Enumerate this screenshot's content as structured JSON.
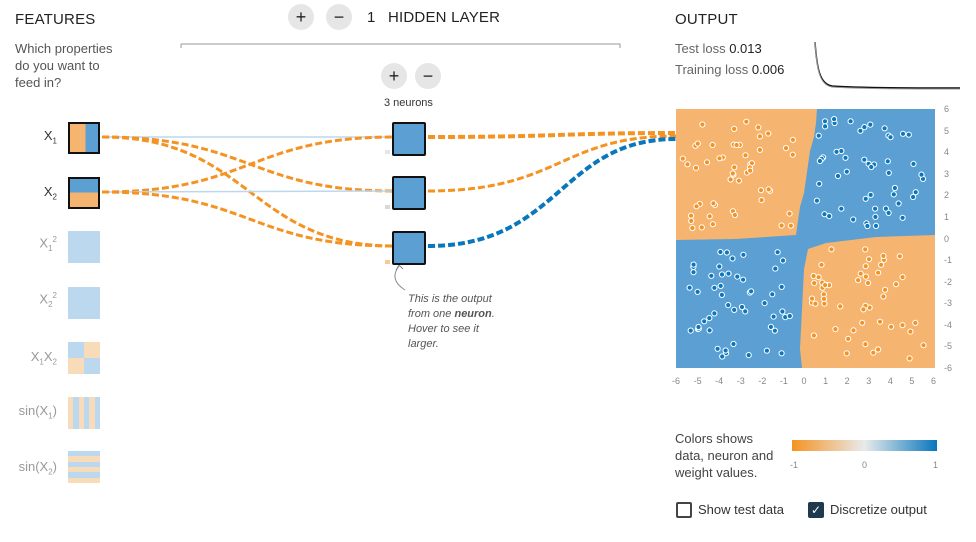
{
  "features": {
    "title": "FEATURES",
    "subtitle_lines": [
      "Which properties",
      "do you want to",
      "feed in?"
    ]
  },
  "hidden": {
    "count": "1",
    "title": "HIDDEN LAYER",
    "neurons_label": "3 neurons",
    "add_layer_label": "+",
    "remove_layer_label": "−",
    "add_neuron_label": "+",
    "remove_neuron_label": "−"
  },
  "note": {
    "line1": "This is the output",
    "line2_pre": "from one ",
    "line2_bold": "neuron",
    "line2_post": ".",
    "line3": "Hover to see it",
    "line4": "larger."
  },
  "output": {
    "title": "OUTPUT",
    "test_loss_label": "Test loss",
    "test_loss_value": "0.013",
    "train_loss_label": "Training loss",
    "train_loss_value": "0.006",
    "x_ticks": [
      "-6",
      "-5",
      "-4",
      "-3",
      "-2",
      "-1",
      "0",
      "1",
      "2",
      "3",
      "4",
      "5",
      "6"
    ],
    "y_ticks": [
      "6",
      "5",
      "4",
      "3",
      "2",
      "1",
      "0",
      "-1",
      "-2",
      "-3",
      "-4",
      "-5",
      "-6"
    ]
  },
  "legend": {
    "lines": [
      "Colors shows",
      "data, neuron and",
      "weight values."
    ],
    "min": "-1",
    "mid": "0",
    "max": "1"
  },
  "controls": {
    "show_test_label": "Show test data",
    "show_test_checked": false,
    "discretize_label": "Discretize output",
    "discretize_checked": true
  },
  "colors": {
    "orange": "#f59322",
    "blue": "#0877bd",
    "region_orange": "#f5b46f",
    "region_blue": "#5b9fd3"
  }
}
